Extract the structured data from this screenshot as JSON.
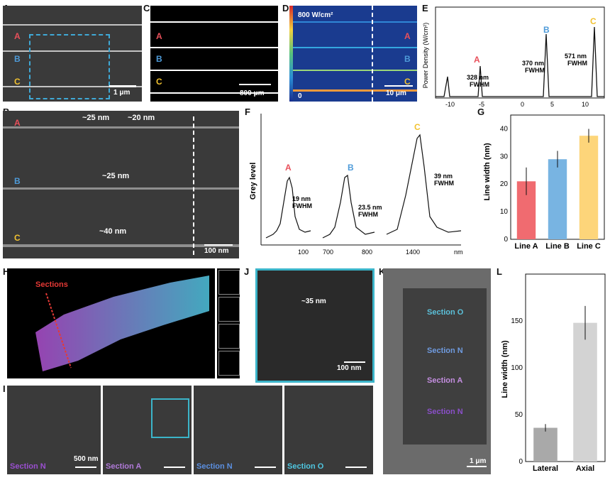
{
  "panels": {
    "A": {
      "label": "A",
      "lines": [
        "A",
        "B",
        "C"
      ],
      "scale": "1 μm"
    },
    "B": {
      "label": "B",
      "lines": [
        "A",
        "B",
        "C"
      ],
      "annotations": [
        "~25 nm",
        "~20 nm",
        "~25 nm",
        "~40 nm"
      ],
      "scale": "100 nm"
    },
    "C": {
      "label": "C",
      "lines": [
        "A",
        "B",
        "C"
      ],
      "scale": "800 μm"
    },
    "D": {
      "label": "D",
      "top": "800 W/cm²",
      "bottom": "0",
      "lines": [
        "A",
        "B",
        "C"
      ],
      "scale": "10 μm"
    },
    "E": {
      "label": "E",
      "ylabel": "Power Density (W/cm²)",
      "peaks": [
        "A",
        "B",
        "C"
      ],
      "fwhm": [
        "328 nm\nFWHM",
        "370 nm\nFWHM",
        "571 nm\nFWHM"
      ],
      "ticks": [
        "-10",
        "-5",
        "0",
        "5",
        "10"
      ]
    },
    "F": {
      "label": "F",
      "ylabel": "Grey level",
      "peaks": [
        "A",
        "B",
        "C"
      ],
      "fwhm": [
        "19 nm",
        "23.5 nm",
        "39 nm"
      ],
      "fwhm_word": "FWHM",
      "ticks": [
        "100",
        "700",
        "800",
        "1400"
      ],
      "unit": "nm"
    },
    "G": {
      "label": "G",
      "ylabel": "Line width (nm)",
      "categories": [
        "Line A",
        "Line B",
        "Line C"
      ],
      "yticks": [
        "0",
        "10",
        "20",
        "30",
        "40"
      ]
    },
    "H": {
      "label": "H",
      "sections": "Sections"
    },
    "I": {
      "label": "I",
      "sections": [
        "Section N",
        "Section A",
        "Section N",
        "Section O"
      ],
      "scale": "500 nm"
    },
    "J": {
      "label": "J",
      "annotation": "~35 nm",
      "scale": "100 nm"
    },
    "K": {
      "label": "K",
      "sections": [
        "Section O",
        "Section N",
        "Section A",
        "Section N"
      ],
      "scale": "1 μm"
    },
    "L": {
      "label": "L",
      "ylabel": "Line width (nm)",
      "categories": [
        "Lateral",
        "Axial"
      ],
      "yticks": [
        "0",
        "50",
        "100",
        "150"
      ]
    }
  },
  "chart_data": [
    {
      "type": "bar",
      "panel": "G",
      "categories": [
        "Line A",
        "Line B",
        "Line C"
      ],
      "values": [
        21,
        29,
        37.5
      ],
      "errors": [
        5,
        3,
        2.5
      ],
      "colors": [
        "#f06b70",
        "#78b4e2",
        "#fdd57a"
      ],
      "ylabel": "Line width (nm)",
      "ylim": [
        0,
        45
      ]
    },
    {
      "type": "bar",
      "panel": "L",
      "categories": [
        "Lateral",
        "Axial"
      ],
      "values": [
        36,
        148
      ],
      "errors": [
        4,
        18
      ],
      "colors": [
        "#a9a9a9",
        "#d3d3d3"
      ],
      "ylabel": "Line width (nm)",
      "ylim": [
        0,
        200
      ]
    }
  ]
}
